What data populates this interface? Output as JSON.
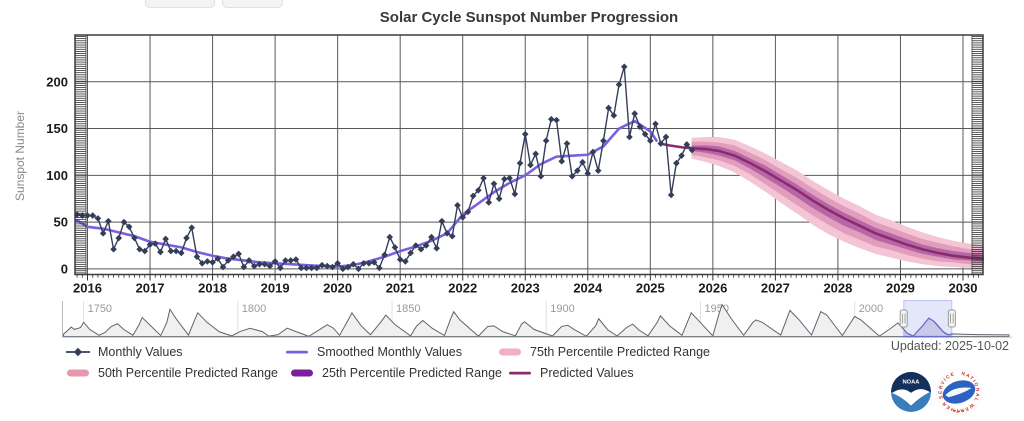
{
  "toolbar": {
    "buttons": [
      {
        "label": ""
      },
      {
        "label": ""
      }
    ]
  },
  "chart_data": {
    "type": "line",
    "title": "Solar Cycle Sunspot Number Progression",
    "ylabel": "Sunspot Number",
    "x_ticks": [
      2016,
      2017,
      2018,
      2019,
      2020,
      2021,
      2022,
      2023,
      2024,
      2025,
      2026,
      2027,
      2028,
      2029,
      2030
    ],
    "y_ticks": [
      0,
      50,
      100,
      150,
      200
    ],
    "xlim": [
      2015.8,
      2030.32
    ],
    "ylim": [
      -6,
      250
    ],
    "grid": true,
    "series": [
      {
        "name": "Monthly Values",
        "type": "line",
        "marker": "diamond",
        "color": "#343e58",
        "start_x": 2015.8333,
        "step_years": 0.0833333,
        "values": [
          58,
          57,
          57,
          57,
          54,
          38,
          51,
          21,
          33,
          50,
          45,
          33,
          21,
          19,
          26,
          27,
          18,
          32,
          19,
          19,
          17,
          33,
          44,
          13,
          6,
          8,
          7,
          11,
          2,
          9,
          13,
          16,
          2,
          9,
          3,
          5,
          5,
          3,
          8,
          1,
          9,
          9,
          10,
          1,
          1,
          1,
          1,
          4,
          3,
          2,
          6,
          0,
          2,
          5,
          0,
          6,
          6,
          7,
          1,
          15,
          34,
          23,
          10,
          8,
          17,
          25,
          21,
          25,
          34,
          22,
          51,
          38,
          35,
          68,
          55,
          61,
          78,
          84,
          97,
          71,
          91,
          75,
          96,
          97,
          80,
          113,
          144,
          111,
          123,
          99,
          137,
          160,
          159,
          115,
          134,
          99,
          105,
          114,
          102,
          125,
          105,
          137,
          172,
          164,
          197,
          216,
          141,
          166,
          152,
          144,
          137,
          155,
          134,
          141,
          79,
          113,
          121,
          133,
          127
        ]
      },
      {
        "name": "Smoothed Monthly Values",
        "type": "line",
        "color": "#7b5fe0",
        "points": [
          [
            2015.83,
            52
          ],
          [
            2016.0,
            45
          ],
          [
            2016.25,
            43
          ],
          [
            2016.5,
            39
          ],
          [
            2016.75,
            35
          ],
          [
            2017.0,
            29
          ],
          [
            2017.25,
            26
          ],
          [
            2017.5,
            23
          ],
          [
            2017.75,
            18
          ],
          [
            2018.0,
            14
          ],
          [
            2018.25,
            11
          ],
          [
            2018.5,
            9
          ],
          [
            2018.75,
            7
          ],
          [
            2019.0,
            6
          ],
          [
            2019.25,
            5
          ],
          [
            2019.5,
            4
          ],
          [
            2019.75,
            3
          ],
          [
            2020.0,
            2.5
          ],
          [
            2020.25,
            4
          ],
          [
            2020.5,
            8
          ],
          [
            2020.75,
            13
          ],
          [
            2021.0,
            19
          ],
          [
            2021.25,
            24
          ],
          [
            2021.5,
            30
          ],
          [
            2021.75,
            38
          ],
          [
            2022.0,
            58
          ],
          [
            2022.25,
            70
          ],
          [
            2022.5,
            82
          ],
          [
            2022.75,
            92
          ],
          [
            2023.0,
            100
          ],
          [
            2023.25,
            112
          ],
          [
            2023.5,
            120
          ],
          [
            2023.75,
            121
          ],
          [
            2024.0,
            122
          ],
          [
            2024.25,
            131
          ],
          [
            2024.5,
            150
          ],
          [
            2024.75,
            158
          ],
          [
            2025.0,
            147
          ],
          [
            2025.1,
            137
          ]
        ]
      },
      {
        "name": "Predicted Values",
        "type": "line",
        "color": "#8d2a6e",
        "points": [
          [
            2025.15,
            134
          ],
          [
            2025.3,
            132
          ],
          [
            2025.5,
            130
          ],
          [
            2025.66,
            129
          ],
          [
            2025.9,
            128
          ],
          [
            2026.1,
            126
          ],
          [
            2026.35,
            121
          ],
          [
            2026.6,
            113
          ],
          [
            2026.85,
            104
          ],
          [
            2027.1,
            94
          ],
          [
            2027.35,
            84
          ],
          [
            2027.6,
            73
          ],
          [
            2027.85,
            63
          ],
          [
            2028.1,
            54
          ],
          [
            2028.35,
            46
          ],
          [
            2028.6,
            38
          ],
          [
            2028.85,
            32
          ],
          [
            2029.1,
            26
          ],
          [
            2029.35,
            21
          ],
          [
            2029.6,
            17
          ],
          [
            2029.85,
            14
          ],
          [
            2030.1,
            12
          ],
          [
            2030.35,
            11
          ]
        ]
      },
      {
        "name": "75th Percentile Predicted Range",
        "type": "arearange",
        "color": "#f3c5d5",
        "x": [
          2025.66,
          2025.9,
          2026.1,
          2026.35,
          2026.6,
          2026.85,
          2027.1,
          2027.35,
          2027.6,
          2027.85,
          2028.1,
          2028.35,
          2028.6,
          2028.85,
          2029.1,
          2029.35,
          2029.6,
          2029.85,
          2030.1,
          2030.35
        ],
        "hi": [
          140,
          141,
          141,
          138,
          131,
          123,
          114,
          105,
          94,
          84,
          75,
          67,
          58,
          52,
          45,
          39,
          34,
          30,
          27,
          25
        ],
        "lo": [
          118,
          114,
          110,
          103,
          93,
          82,
          70,
          59,
          47,
          37,
          29,
          22,
          16,
          12,
          8,
          5,
          3,
          2,
          1,
          1
        ]
      },
      {
        "name": "50th Percentile Predicted Range",
        "type": "arearange",
        "color": "#e29dbd",
        "x": [
          2025.66,
          2025.9,
          2026.1,
          2026.35,
          2026.6,
          2026.85,
          2027.1,
          2027.35,
          2027.6,
          2027.85,
          2028.1,
          2028.35,
          2028.6,
          2028.85,
          2029.1,
          2029.35,
          2029.6,
          2029.85,
          2030.1,
          2030.35
        ],
        "hi": [
          136,
          136,
          135,
          132,
          124,
          116,
          106,
          97,
          86,
          76,
          67,
          59,
          50,
          44,
          38,
          32,
          28,
          24,
          21,
          20
        ],
        "lo": [
          122,
          119,
          116,
          110,
          101,
          90,
          79,
          68,
          57,
          47,
          38,
          31,
          24,
          20,
          15,
          11,
          8,
          7,
          5,
          5
        ]
      },
      {
        "name": "25th Percentile Predicted Range",
        "type": "arearange",
        "color": "#b568a5",
        "x": [
          2025.66,
          2025.9,
          2026.1,
          2026.35,
          2026.6,
          2026.85,
          2027.1,
          2027.35,
          2027.6,
          2027.85,
          2028.1,
          2028.35,
          2028.6,
          2028.85,
          2029.1,
          2029.35,
          2029.6,
          2029.85,
          2030.1,
          2030.35
        ],
        "hi": [
          132,
          132,
          131,
          126,
          118,
          110,
          100,
          90,
          79,
          69,
          60,
          52,
          44,
          38,
          32,
          26,
          22,
          19,
          17,
          15
        ],
        "lo": [
          126,
          124,
          121,
          116,
          107,
          97,
          87,
          76,
          65,
          55,
          46,
          39,
          31,
          26,
          21,
          16,
          13,
          10,
          9,
          8
        ]
      }
    ],
    "navigator": {
      "x_ticks": [
        1750,
        1800,
        1850,
        1900,
        1950,
        2000
      ],
      "xlim": [
        1743,
        2051
      ],
      "ylim": [
        0,
        300
      ],
      "selection": [
        2015.9,
        2031.5
      ],
      "series": [
        [
          1743.5,
          20
        ],
        [
          1745,
          55
        ],
        [
          1746,
          80
        ],
        [
          1747,
          60
        ],
        [
          1749,
          75
        ],
        [
          1750,
          120
        ],
        [
          1752,
          60
        ],
        [
          1755,
          10
        ],
        [
          1757,
          35
        ],
        [
          1759,
          85
        ],
        [
          1761,
          108
        ],
        [
          1763,
          60
        ],
        [
          1766,
          10
        ],
        [
          1768,
          100
        ],
        [
          1769,
          160
        ],
        [
          1771,
          110
        ],
        [
          1775,
          8
        ],
        [
          1777,
          120
        ],
        [
          1778,
          230
        ],
        [
          1780,
          150
        ],
        [
          1784,
          12
        ],
        [
          1786,
          140
        ],
        [
          1787,
          200
        ],
        [
          1790,
          120
        ],
        [
          1794,
          40
        ],
        [
          1798,
          5
        ],
        [
          1801,
          45
        ],
        [
          1804,
          70
        ],
        [
          1808,
          40
        ],
        [
          1810,
          3
        ],
        [
          1813,
          15
        ],
        [
          1816,
          70
        ],
        [
          1819,
          40
        ],
        [
          1823,
          2
        ],
        [
          1826,
          50
        ],
        [
          1829,
          100
        ],
        [
          1831,
          70
        ],
        [
          1833,
          10
        ],
        [
          1836,
          150
        ],
        [
          1837,
          200
        ],
        [
          1840,
          90
        ],
        [
          1843,
          15
        ],
        [
          1846,
          110
        ],
        [
          1848,
          180
        ],
        [
          1851,
          100
        ],
        [
          1856,
          5
        ],
        [
          1858,
          90
        ],
        [
          1860,
          135
        ],
        [
          1863,
          70
        ],
        [
          1867,
          8
        ],
        [
          1869,
          150
        ],
        [
          1870,
          210
        ],
        [
          1872,
          140
        ],
        [
          1878,
          3
        ],
        [
          1881,
          85
        ],
        [
          1883,
          90
        ],
        [
          1886,
          40
        ],
        [
          1890,
          6
        ],
        [
          1892,
          105
        ],
        [
          1893,
          125
        ],
        [
          1896,
          60
        ],
        [
          1902,
          4
        ],
        [
          1905,
          85
        ],
        [
          1907,
          95
        ],
        [
          1909,
          60
        ],
        [
          1913,
          2
        ],
        [
          1916,
          90
        ],
        [
          1917,
          150
        ],
        [
          1920,
          55
        ],
        [
          1923,
          4
        ],
        [
          1926,
          75
        ],
        [
          1928,
          105
        ],
        [
          1930,
          55
        ],
        [
          1933,
          6
        ],
        [
          1936,
          120
        ],
        [
          1937,
          175
        ],
        [
          1940,
          90
        ],
        [
          1944,
          10
        ],
        [
          1947,
          200
        ],
        [
          1949,
          145
        ],
        [
          1954,
          5
        ],
        [
          1956,
          190
        ],
        [
          1957,
          270
        ],
        [
          1960,
          150
        ],
        [
          1964,
          10
        ],
        [
          1967,
          120
        ],
        [
          1968,
          140
        ],
        [
          1970,
          120
        ],
        [
          1976,
          12
        ],
        [
          1979,
          220
        ],
        [
          1982,
          140
        ],
        [
          1986,
          12
        ],
        [
          1989,
          210
        ],
        [
          1991,
          180
        ],
        [
          1996,
          8
        ],
        [
          2000,
          170
        ],
        [
          2002,
          140
        ],
        [
          2008,
          3
        ],
        [
          2012,
          75
        ],
        [
          2014,
          115
        ],
        [
          2017,
          28
        ],
        [
          2019,
          4
        ],
        [
          2022,
          90
        ],
        [
          2024,
          155
        ],
        [
          2025.3,
          135
        ],
        [
          2025.7,
          127
        ],
        [
          2026.5,
          105
        ],
        [
          2027.5,
          75
        ],
        [
          2028.5,
          45
        ],
        [
          2029.5,
          25
        ],
        [
          2030.5,
          14
        ],
        [
          2031.5,
          22
        ],
        [
          2034,
          20
        ],
        [
          2040,
          16
        ],
        [
          2050,
          14
        ]
      ],
      "predicted_tail": [
        [
          2025.7,
          127
        ],
        [
          2026.5,
          105
        ],
        [
          2027.5,
          75
        ],
        [
          2028.5,
          45
        ],
        [
          2029.5,
          25
        ],
        [
          2030.5,
          14
        ]
      ]
    }
  },
  "legend": {
    "updated": "Updated: 2025-10-02",
    "items": [
      {
        "label": "Monthly Values",
        "marker": "line-diamond",
        "color": "#343e58"
      },
      {
        "label": "Smoothed Monthly Values",
        "marker": "line",
        "color": "#7b5fe0"
      },
      {
        "label": "75th Percentile Predicted Range",
        "marker": "band",
        "color": "#f0afc6"
      },
      {
        "label": "50th Percentile Predicted Range",
        "marker": "band",
        "color": "#e898ad"
      },
      {
        "label": "25th Percentile Predicted Range",
        "marker": "band",
        "color": "#7c1f9e"
      },
      {
        "label": "Predicted Values",
        "marker": "line",
        "color": "#8d2a6e"
      }
    ]
  },
  "logos": {
    "noaa": "NOAA",
    "nws": "NATIONAL WEATHER SERVICE"
  }
}
